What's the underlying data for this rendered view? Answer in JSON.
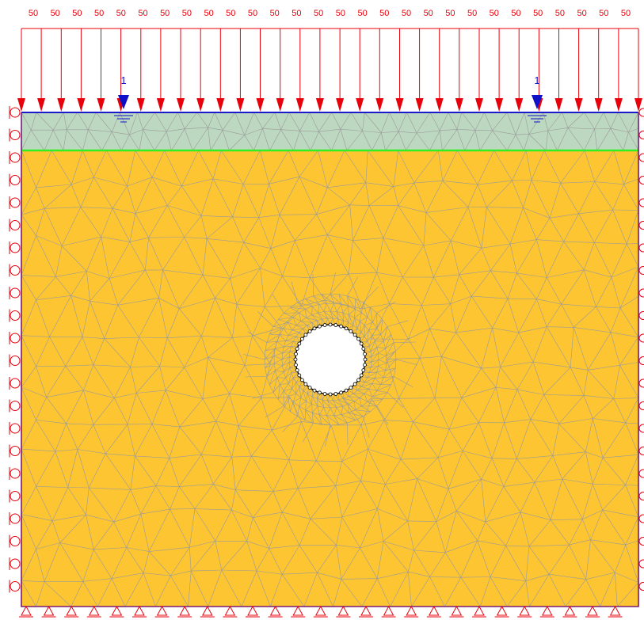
{
  "distributed_load": {
    "value_label": "50",
    "arrow_count": 32,
    "color": "#e8000b"
  },
  "water_table": {
    "label": "1",
    "marker_count": 2,
    "color": "#1010c8"
  },
  "layers": {
    "top_layer_color": "#bdd8c0",
    "main_soil_color": "#fdc532",
    "layer_boundary_color": "#33ee22",
    "top_boundary_color": "#1a1acc",
    "model_boundary_color": "#7a1a7a"
  },
  "mesh": {
    "line_color": "#9a9a9a"
  },
  "tunnel": {
    "shape": "circle",
    "fill": "#ffffff",
    "outline_color": "#000000"
  },
  "supports": {
    "left_side": "rollers",
    "right_side": "rollers",
    "bottom": "pins",
    "color": "#e8000b"
  }
}
